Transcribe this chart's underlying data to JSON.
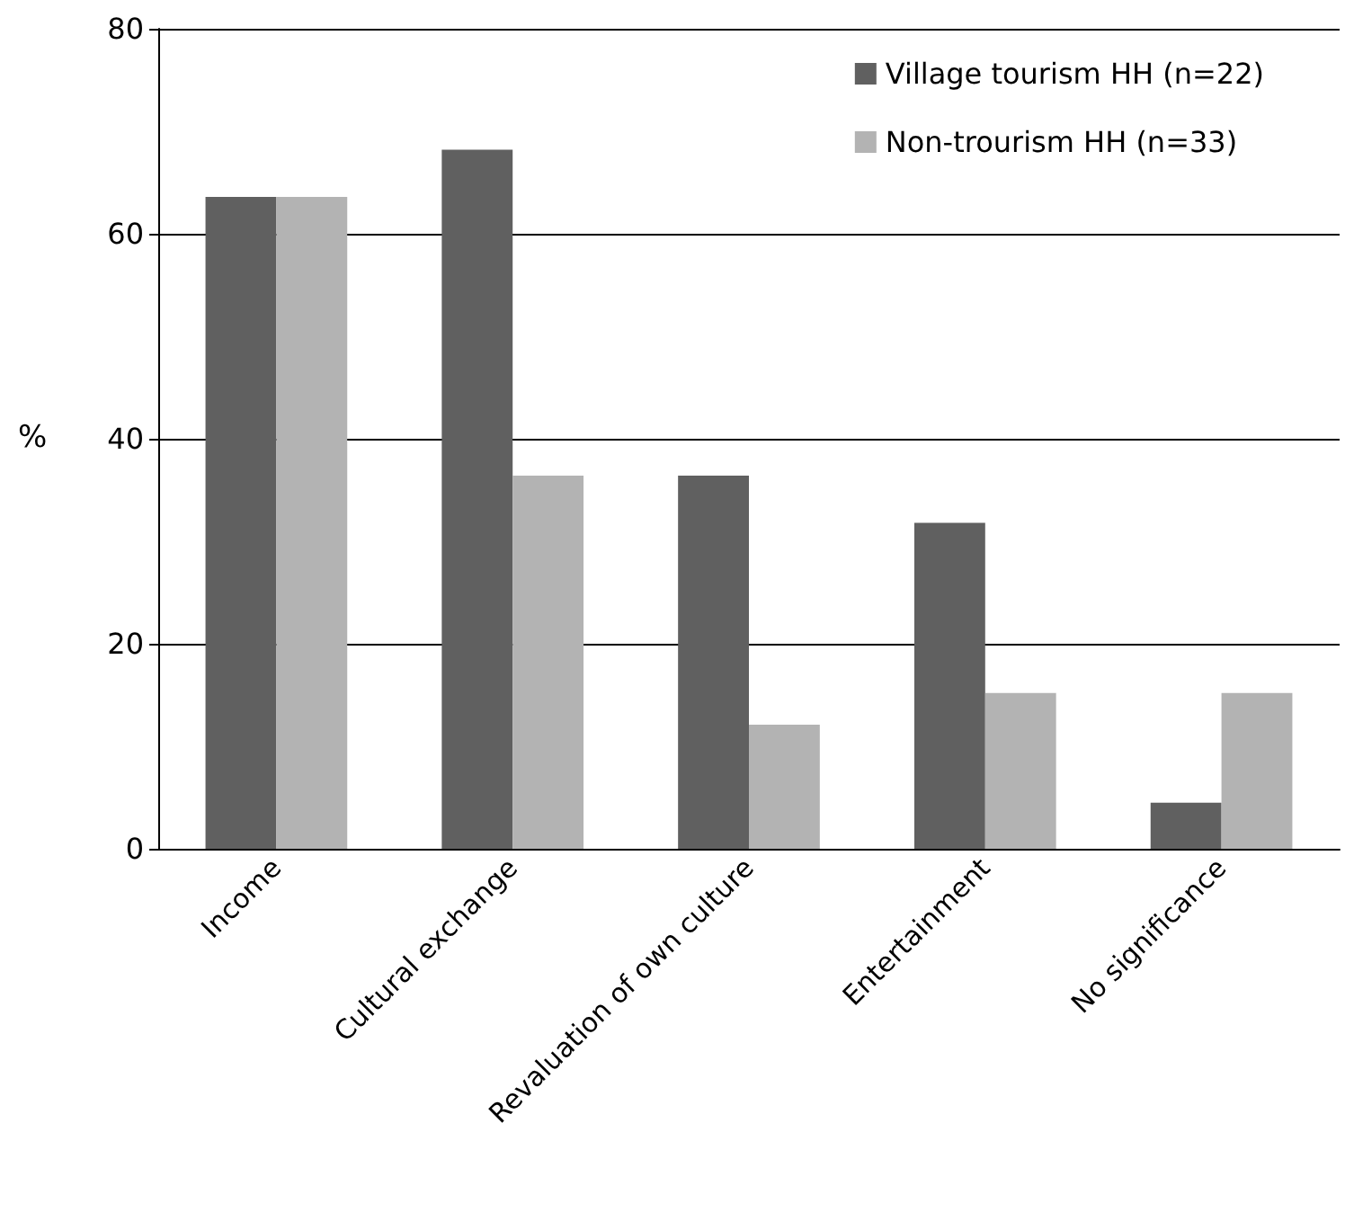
{
  "chart_data": {
    "type": "bar",
    "ylabel": "%",
    "categories": [
      "Income",
      "Cultural exchange",
      "Revaluation of own culture",
      "Entertainment",
      "No significance"
    ],
    "series": [
      {
        "name": "Village tourism HH (n=22)",
        "color": "#606060",
        "values": [
          63.6,
          68.2,
          36.4,
          31.8,
          4.5
        ]
      },
      {
        "name": "Non-trourism HH (n=33)",
        "color": "#b3b3b3",
        "values": [
          63.6,
          36.4,
          12.1,
          15.2,
          15.2
        ]
      }
    ],
    "ylim": [
      0,
      80
    ],
    "yticks": [
      0,
      20,
      40,
      60,
      80
    ],
    "grid": "y",
    "legend": "top right"
  }
}
